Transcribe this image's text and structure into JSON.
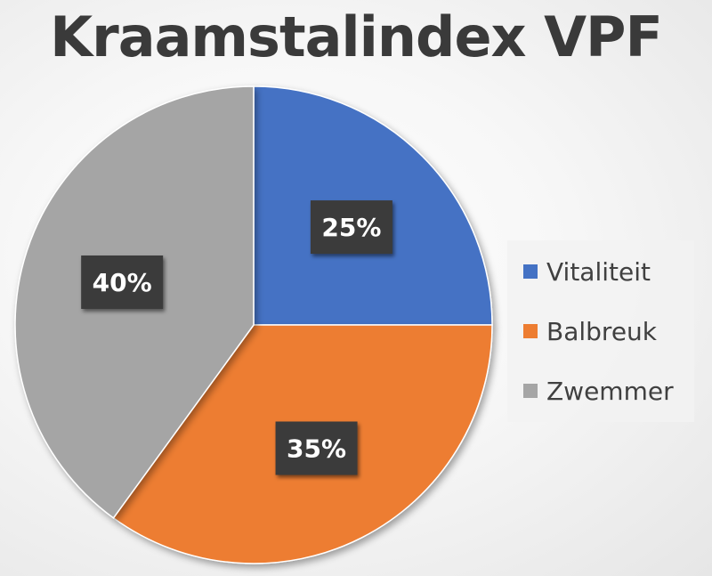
{
  "chart_data": {
    "type": "pie",
    "title": "Kraamstalindex VPF",
    "categories": [
      "Vitaliteit",
      "Balbreuk",
      "Zwemmer"
    ],
    "values": [
      25,
      35,
      40
    ],
    "data_labels": [
      "25%",
      "35%",
      "40%"
    ],
    "colors": [
      "#4472C4",
      "#ED7D31",
      "#A5A5A5"
    ],
    "start_angle_deg": 0,
    "direction": "clockwise",
    "legend_position": "right"
  }
}
